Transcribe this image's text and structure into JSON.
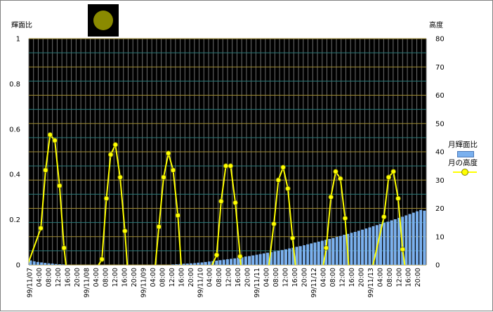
{
  "labels": {
    "left_axis_title": "輝面比",
    "right_axis_title": "高度"
  },
  "colors": {
    "plot_background": "#000000",
    "bar_fill": "#7ab0ee",
    "line_color": "#ffff00",
    "major_grid": "#a08c32",
    "minor_grid": "#2a7a7a",
    "vertical_grid": "#707070",
    "moon_icon": "#8a8a00"
  },
  "icon": "moon-icon",
  "chart_data": {
    "type": "bar",
    "legend": [
      "月輝面比",
      "月の高度"
    ],
    "legend_position": "right",
    "grid": true,
    "y_left": {
      "min": 0,
      "max": 1,
      "ticks": [
        "0",
        "0.2",
        "0.4",
        "0.6",
        "0.8",
        "1"
      ]
    },
    "y_right": {
      "min": 0,
      "max": 80,
      "ticks": [
        "0",
        "10",
        "20",
        "30",
        "40",
        "50",
        "60",
        "70",
        "80"
      ]
    },
    "x_tick_labels": [
      "99/11/07",
      "04:00",
      "08:00",
      "12:00",
      "16:00",
      "20:00",
      "99/11/08",
      "04:00",
      "08:00",
      "12:00",
      "16:00",
      "20:00",
      "99/11/09",
      "04:00",
      "08:00",
      "12:00",
      "16:00",
      "20:00",
      "99/11/10",
      "04:00",
      "08:00",
      "12:00",
      "16:00",
      "20:00",
      "99/11/11",
      "04:00",
      "08:00",
      "12:00",
      "16:00",
      "20:00",
      "99/11/12",
      "04:00",
      "08:00",
      "12:00",
      "16:00",
      "20:00",
      "99/11/13",
      "04:00",
      "08:00",
      "12:00",
      "16:00",
      "20:00"
    ],
    "series": [
      {
        "name": "月輝面比",
        "axis": "left",
        "values": [
          0.02,
          0.016,
          0.013,
          0.011,
          0.009,
          0.007,
          0.006,
          0.004,
          0.003,
          0.002,
          0.001,
          0.001,
          0.0,
          0.0,
          0.0,
          0.0,
          0.0,
          0.0,
          0.0,
          0.0,
          0.0,
          0.0,
          0.0,
          0.0,
          0.0,
          0.0,
          0.0,
          0.0,
          0.0,
          0.0,
          0.0,
          0.0,
          0.0,
          0.0,
          0.0,
          0.0,
          0.0,
          0.001,
          0.001,
          0.002,
          0.003,
          0.004,
          0.005,
          0.006,
          0.007,
          0.008,
          0.01,
          0.011,
          0.013,
          0.015,
          0.017,
          0.019,
          0.021,
          0.023,
          0.025,
          0.027,
          0.029,
          0.032,
          0.034,
          0.037,
          0.039,
          0.042,
          0.045,
          0.048,
          0.051,
          0.054,
          0.057,
          0.06,
          0.063,
          0.066,
          0.069,
          0.073,
          0.076,
          0.08,
          0.083,
          0.087,
          0.091,
          0.095,
          0.099,
          0.103,
          0.107,
          0.111,
          0.115,
          0.119,
          0.124,
          0.128,
          0.133,
          0.137,
          0.142,
          0.146,
          0.151,
          0.156,
          0.161,
          0.166,
          0.171,
          0.176,
          0.181,
          0.186,
          0.191,
          0.197,
          0.202,
          0.208,
          0.213,
          0.219,
          0.225,
          0.231,
          0.237,
          0.243,
          0.24
        ]
      },
      {
        "name": "月の高度",
        "axis": "right",
        "points": [
          [
            -1,
            0
          ],
          [
            4.6,
            13
          ],
          [
            6.6,
            33.5
          ],
          [
            8.5,
            46
          ],
          [
            10.5,
            44
          ],
          [
            12.5,
            28
          ],
          [
            14.4,
            6
          ],
          [
            15.2,
            0
          ],
          [
            29,
            0
          ],
          [
            30.4,
            2
          ],
          [
            32.3,
            23.5
          ],
          [
            34.1,
            39
          ],
          [
            36.1,
            42.5
          ],
          [
            38.1,
            31
          ],
          [
            40.1,
            12
          ],
          [
            41.1,
            0
          ],
          [
            53,
            0
          ],
          [
            54.5,
            13.5
          ],
          [
            56.5,
            31
          ],
          [
            58.5,
            39.5
          ],
          [
            60.5,
            33.5
          ],
          [
            62.5,
            17.5
          ],
          [
            63.9,
            0
          ],
          [
            77,
            0
          ],
          [
            78.9,
            3.5
          ],
          [
            80.8,
            22.5
          ],
          [
            82.8,
            35
          ],
          [
            84.8,
            35
          ],
          [
            86.8,
            22
          ],
          [
            88.8,
            3
          ],
          [
            89.1,
            0
          ],
          [
            101,
            0
          ],
          [
            103.1,
            14.5
          ],
          [
            105,
            30
          ],
          [
            107,
            34.5
          ],
          [
            109,
            27
          ],
          [
            111,
            9.5
          ],
          [
            112.2,
            0
          ],
          [
            124,
            0
          ],
          [
            125.2,
            6
          ],
          [
            127.2,
            24
          ],
          [
            129.2,
            33
          ],
          [
            131.2,
            30.5
          ],
          [
            133.2,
            16.5
          ],
          [
            134.7,
            0
          ],
          [
            145,
            0
          ],
          [
            149.6,
            17
          ],
          [
            151.6,
            31
          ],
          [
            153.6,
            33
          ],
          [
            155.6,
            23.5
          ],
          [
            157.5,
            5.5
          ],
          [
            158.4,
            0
          ]
        ]
      }
    ]
  }
}
